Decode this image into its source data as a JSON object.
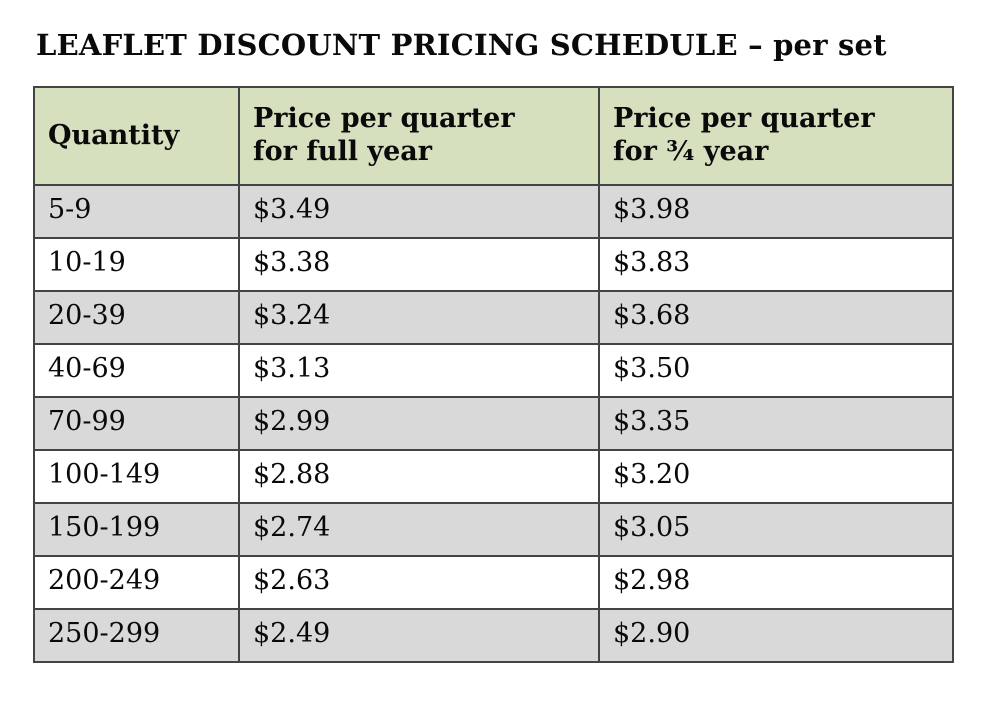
{
  "title": "LEAFLET DISCOUNT PRICING SCHEDULE – per set",
  "colors": {
    "header_bg": "#d6e0be",
    "row_alt_bg": "#d9d9d9",
    "border": "#444444",
    "text": "#0a0a0a",
    "page_bg": "#ffffff"
  },
  "table": {
    "header": {
      "quantity": "Quantity",
      "full_year_line1": "Price per quarter",
      "full_year_line2": "for full year",
      "three_quarter_line1": "Price per quarter",
      "three_quarter_line2": "for ¾ year"
    },
    "rows": [
      {
        "quantity": "5-9",
        "full_year": "$3.49",
        "three_quarter_year": "$3.98"
      },
      {
        "quantity": "10-19",
        "full_year": "$3.38",
        "three_quarter_year": "$3.83"
      },
      {
        "quantity": "20-39",
        "full_year": "$3.24",
        "three_quarter_year": "$3.68"
      },
      {
        "quantity": "40-69",
        "full_year": "$3.13",
        "three_quarter_year": "$3.50"
      },
      {
        "quantity": "70-99",
        "full_year": "$2.99",
        "three_quarter_year": "$3.35"
      },
      {
        "quantity": "100-149",
        "full_year": "$2.88",
        "three_quarter_year": "$3.20"
      },
      {
        "quantity": "150-199",
        "full_year": "$2.74",
        "three_quarter_year": "$3.05"
      },
      {
        "quantity": "200-249",
        "full_year": "$2.63",
        "three_quarter_year": "$2.98"
      },
      {
        "quantity": "250-299",
        "full_year": "$2.49",
        "three_quarter_year": "$2.90"
      }
    ]
  },
  "chart_data": {
    "type": "table",
    "title": "LEAFLET DISCOUNT PRICING SCHEDULE – per set",
    "columns": [
      "Quantity",
      "Price per quarter for full year",
      "Price per quarter for ¾ year"
    ],
    "rows": [
      [
        "5-9",
        "$3.49",
        "$3.98"
      ],
      [
        "10-19",
        "$3.38",
        "$3.83"
      ],
      [
        "20-39",
        "$3.24",
        "$3.68"
      ],
      [
        "40-69",
        "$3.13",
        "$3.50"
      ],
      [
        "70-99",
        "$2.99",
        "$3.35"
      ],
      [
        "100-149",
        "$2.88",
        "$3.20"
      ],
      [
        "150-199",
        "$2.74",
        "$3.05"
      ],
      [
        "200-249",
        "$2.63",
        "$2.98"
      ],
      [
        "250-299",
        "$2.49",
        "$2.90"
      ]
    ]
  }
}
